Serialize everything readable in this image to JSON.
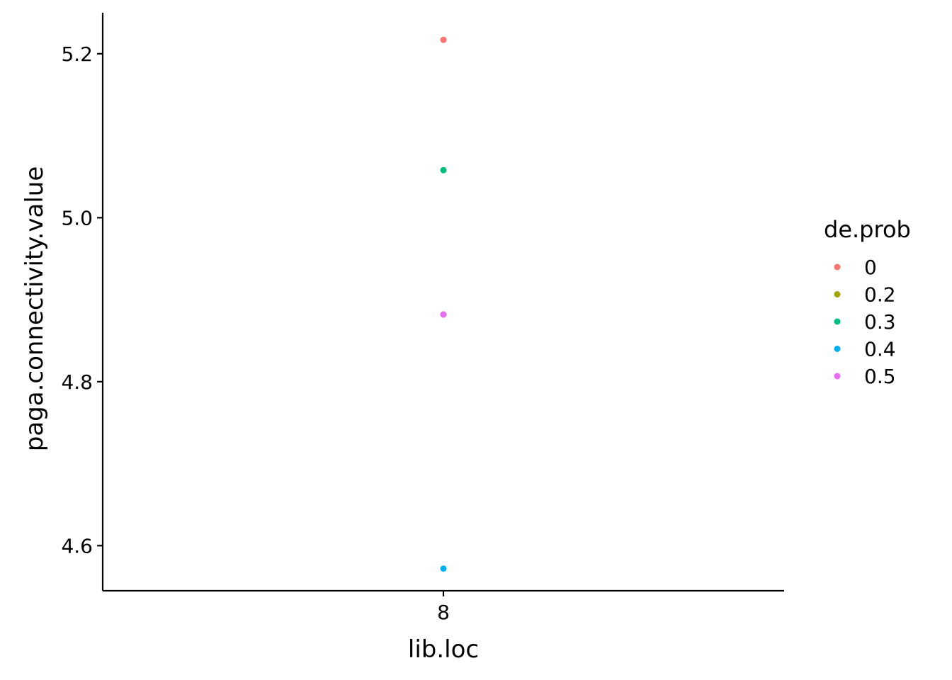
{
  "chart_data": {
    "type": "scatter",
    "title": "",
    "xlabel": "lib.loc",
    "ylabel": "paga.connectivity.value",
    "categories": [
      "8"
    ],
    "ylim": [
      4.545,
      5.25
    ],
    "yticks": [
      4.6,
      4.8,
      5.0,
      5.2
    ],
    "ytick_labels": [
      "4.6",
      "4.8",
      "5.0",
      "5.2"
    ],
    "grid": false,
    "legend": {
      "title": "de.prob",
      "position": "right",
      "entries": [
        {
          "label": "0",
          "color": "#F8766D"
        },
        {
          "label": "0.2",
          "color": "#A3A500"
        },
        {
          "label": "0.3",
          "color": "#00BF7D"
        },
        {
          "label": "0.4",
          "color": "#00B0F6"
        },
        {
          "label": "0.5",
          "color": "#E76BF3"
        }
      ]
    },
    "series": [
      {
        "name": "0",
        "color": "#F8766D",
        "points": [
          {
            "x": "8",
            "y": 5.217
          }
        ]
      },
      {
        "name": "0.2",
        "color": "#A3A500",
        "points": [
          {
            "x": "8",
            "y": 4.882
          }
        ]
      },
      {
        "name": "0.3",
        "color": "#00BF7D",
        "points": [
          {
            "x": "8",
            "y": 5.058
          }
        ]
      },
      {
        "name": "0.4",
        "color": "#00B0F6",
        "points": [
          {
            "x": "8",
            "y": 4.572
          }
        ]
      },
      {
        "name": "0.5",
        "color": "#E76BF3",
        "points": [
          {
            "x": "8",
            "y": 4.882
          }
        ]
      }
    ]
  }
}
